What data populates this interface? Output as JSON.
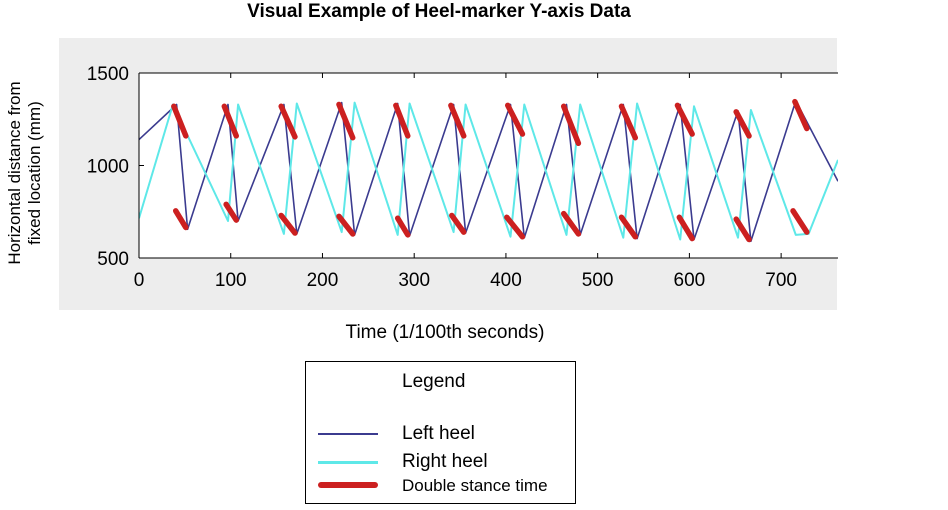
{
  "chart_data": {
    "type": "line",
    "title": "Visual Example of Heel-marker Y-axis Data",
    "xlabel": "Time (1/100th seconds)",
    "ylabel_lines": [
      "Horizontal distance from",
      "fixed location (mm)"
    ],
    "xlim": [
      0,
      762
    ],
    "ylim": [
      500,
      1500
    ],
    "xticks": [
      0,
      100,
      200,
      300,
      400,
      500,
      600,
      700
    ],
    "yticks": [
      500,
      1000,
      1500
    ],
    "grid": false,
    "legend_placement": "below",
    "legend_title": "Legend",
    "series": [
      {
        "name": "Left heel",
        "color": "#3b3b8f",
        "x": [
          0,
          41,
          53,
          97,
          108,
          158,
          172,
          221,
          235,
          282,
          295,
          343,
          356,
          405,
          420,
          466,
          481,
          528,
          543,
          590,
          605,
          653,
          667,
          716,
          762
        ],
        "y": [
          1140,
          1330,
          655,
          1330,
          700,
          1330,
          630,
          1340,
          625,
          1335,
          620,
          1330,
          635,
          1330,
          610,
          1330,
          625,
          1330,
          605,
          1330,
          600,
          1295,
          590,
          1350,
          915
        ]
      },
      {
        "name": "Right heel",
        "color": "#5ee8e8",
        "x": [
          0,
          37,
          97,
          108,
          158,
          172,
          221,
          235,
          282,
          295,
          343,
          356,
          405,
          420,
          466,
          481,
          528,
          543,
          590,
          605,
          653,
          667,
          716,
          730,
          762
        ],
        "y": [
          715,
          1330,
          700,
          1330,
          630,
          1335,
          640,
          1340,
          625,
          1335,
          640,
          1330,
          615,
          1330,
          625,
          1330,
          610,
          1335,
          600,
          1320,
          610,
          1300,
          625,
          630,
          1030
        ]
      }
    ],
    "double_stance": {
      "name": "Double stance time",
      "color": "#cc2020",
      "segments": [
        {
          "x": [
            38,
            51
          ],
          "y": [
            1320,
            1160
          ]
        },
        {
          "x": [
            40,
            51
          ],
          "y": [
            755,
            665
          ]
        },
        {
          "x": [
            93,
            106
          ],
          "y": [
            1320,
            1160
          ]
        },
        {
          "x": [
            95,
            106
          ],
          "y": [
            790,
            705
          ]
        },
        {
          "x": [
            155,
            170
          ],
          "y": [
            1320,
            1155
          ]
        },
        {
          "x": [
            155,
            170
          ],
          "y": [
            730,
            635
          ]
        },
        {
          "x": [
            218,
            233
          ],
          "y": [
            1330,
            1150
          ]
        },
        {
          "x": [
            218,
            233
          ],
          "y": [
            725,
            630
          ]
        },
        {
          "x": [
            280,
            293
          ],
          "y": [
            1325,
            1160
          ]
        },
        {
          "x": [
            282,
            293
          ],
          "y": [
            715,
            625
          ]
        },
        {
          "x": [
            340,
            354
          ],
          "y": [
            1325,
            1160
          ]
        },
        {
          "x": [
            341,
            354
          ],
          "y": [
            730,
            640
          ]
        },
        {
          "x": [
            402,
            418
          ],
          "y": [
            1325,
            1170
          ]
        },
        {
          "x": [
            401,
            418
          ],
          "y": [
            720,
            615
          ]
        },
        {
          "x": [
            463,
            479
          ],
          "y": [
            1320,
            1120
          ]
        },
        {
          "x": [
            463,
            479
          ],
          "y": [
            740,
            630
          ]
        },
        {
          "x": [
            526,
            541
          ],
          "y": [
            1320,
            1150
          ]
        },
        {
          "x": [
            526,
            541
          ],
          "y": [
            720,
            615
          ]
        },
        {
          "x": [
            587,
            603
          ],
          "y": [
            1325,
            1170
          ]
        },
        {
          "x": [
            589,
            603
          ],
          "y": [
            720,
            605
          ]
        },
        {
          "x": [
            651,
            665
          ],
          "y": [
            1290,
            1160
          ]
        },
        {
          "x": [
            651,
            665
          ],
          "y": [
            710,
            600
          ]
        },
        {
          "x": [
            715,
            728
          ],
          "y": [
            1345,
            1200
          ]
        },
        {
          "x": [
            713,
            728
          ],
          "y": [
            755,
            640
          ]
        }
      ]
    }
  }
}
